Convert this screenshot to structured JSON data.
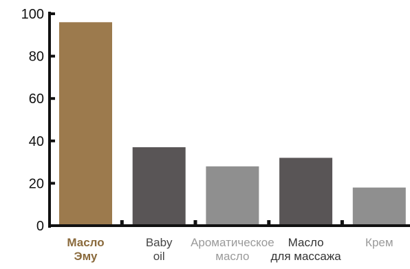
{
  "chart_data": {
    "type": "bar",
    "title": "",
    "xlabel": "",
    "ylabel": "",
    "ylim": [
      0,
      100
    ],
    "yticks": [
      0,
      20,
      40,
      60,
      80,
      100
    ],
    "grid": false,
    "legend": "none",
    "categories": [
      [
        "Масло",
        "Эму"
      ],
      [
        "Baby",
        "oil"
      ],
      [
        "Ароматическое",
        "масло"
      ],
      [
        "Масло",
        "для массажа"
      ],
      [
        "Крем"
      ]
    ],
    "values": [
      96,
      37,
      28,
      32,
      18
    ],
    "bar_colors": [
      "#9c7a4d",
      "#595556",
      "#8f8f8f",
      "#595556",
      "#8f8f8f"
    ],
    "label_colors": [
      "#8a6a3c",
      "#444444",
      "#9a9a9a",
      "#333333",
      "#9a9a9a"
    ],
    "axis_color": "#111111"
  }
}
